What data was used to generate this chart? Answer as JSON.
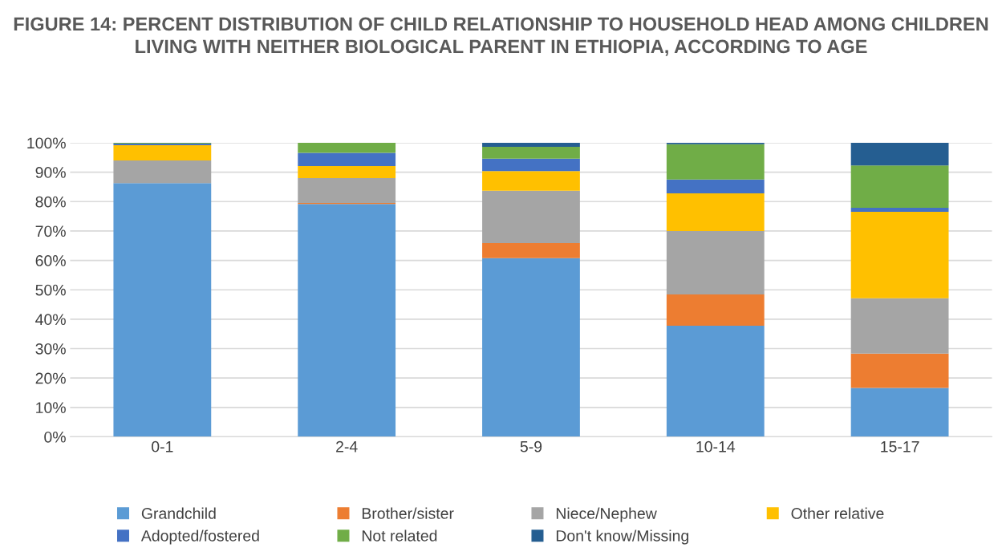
{
  "chart_data": {
    "type": "bar",
    "stacked": true,
    "title": "FIGURE 14: PERCENT DISTRIBUTION OF CHILD RELATIONSHIP TO HOUSEHOLD HEAD AMONG CHILDREN LIVING WITH NEITHER BIOLOGICAL PARENT IN ETHIOPIA, ACCORDING TO AGE",
    "categories": [
      "0-1",
      "2-4",
      "5-9",
      "10-14",
      "15-17"
    ],
    "series": [
      {
        "name": "Grandchild",
        "color": "#5b9bd5",
        "values": [
          86.3,
          79.2,
          60.8,
          37.8,
          16.6
        ]
      },
      {
        "name": "Brother/sister",
        "color": "#ed7d31",
        "values": [
          null,
          0.3,
          5.1,
          10.6,
          11.7
        ]
      },
      {
        "name": "Niece/Nephew",
        "color": "#a5a5a5",
        "values": [
          7.7,
          8.5,
          17.8,
          21.6,
          18.8
        ]
      },
      {
        "name": "Other relative",
        "color": "#ffc000",
        "values": [
          5.2,
          4.1,
          6.7,
          12.8,
          29.4
        ]
      },
      {
        "name": "Adopted/fostered",
        "color": "#4472c4",
        "values": [
          0.5,
          4.5,
          4.2,
          4.7,
          1.4
        ]
      },
      {
        "name": "Not related",
        "color": "#70ad47",
        "values": [
          0.3,
          3.4,
          4.0,
          12.0,
          14.4
        ]
      },
      {
        "name": "Don't know/Missing",
        "color": "#255e91",
        "values": [
          null,
          null,
          1.4,
          0.5,
          7.7
        ]
      }
    ],
    "ylim": [
      0,
      100
    ],
    "yticks": [
      {
        "value": 0,
        "label": "0%"
      },
      {
        "value": 10,
        "label": "10%"
      },
      {
        "value": 20,
        "label": "20%"
      },
      {
        "value": 30,
        "label": "30%"
      },
      {
        "value": 40,
        "label": "40%"
      },
      {
        "value": 50,
        "label": "50%"
      },
      {
        "value": 60,
        "label": "60%"
      },
      {
        "value": 70,
        "label": "70%"
      },
      {
        "value": 80,
        "label": "80%"
      },
      {
        "value": 90,
        "label": "90%"
      },
      {
        "value": 100,
        "label": "100%"
      }
    ],
    "grid": "y",
    "legend": "bottom"
  }
}
